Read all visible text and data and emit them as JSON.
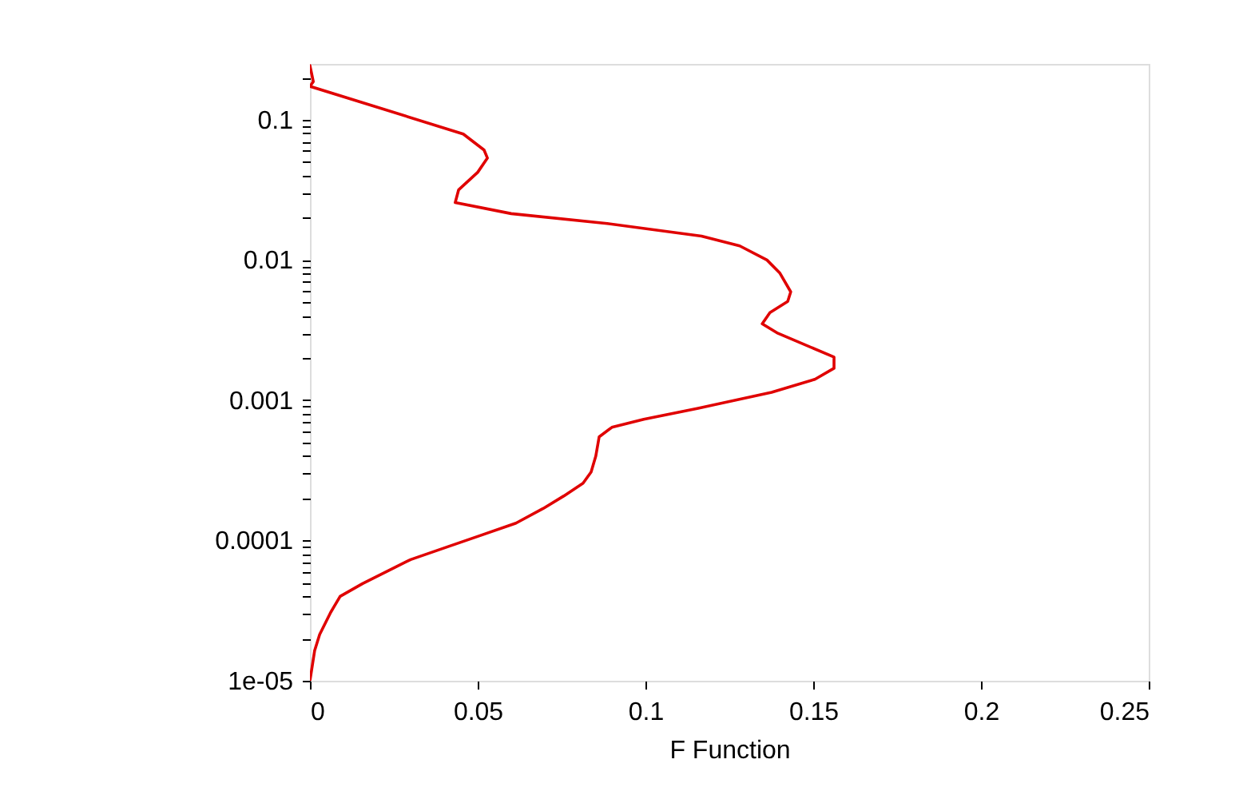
{
  "chart_data": {
    "type": "line",
    "xlabel": "F Function",
    "series": [
      {
        "color": "#e00000",
        "x": [
          0,
          0.001,
          0,
          0.0457,
          0.0519,
          0.0529,
          0.05,
          0.0443,
          0.0433,
          0.06,
          0.0886,
          0.1167,
          0.1281,
          0.1362,
          0.14,
          0.1433,
          0.1424,
          0.1371,
          0.1348,
          0.1395,
          0.1562,
          0.1562,
          0.1505,
          0.1376,
          0.1157,
          0.0995,
          0.09,
          0.0862,
          0.0852,
          0.0838,
          0.0814,
          0.0757,
          0.0695,
          0.0614,
          0.0505,
          0.041,
          0.03,
          0.0252,
          0.0157,
          0.009,
          0.0062,
          0.0029,
          0.0014,
          0
        ],
        "values": [
          0.243,
          0.187,
          0.173,
          0.0791,
          0.0608,
          0.0533,
          0.0422,
          0.0316,
          0.0257,
          0.0214,
          0.0182,
          0.0148,
          0.0126,
          0.01,
          0.0081,
          0.00593,
          0.00507,
          0.00422,
          0.00351,
          0.003,
          0.00203,
          0.00169,
          0.00141,
          0.00114,
          0.000877,
          0.000731,
          0.000641,
          0.000548,
          0.0004,
          0.000308,
          0.000256,
          0.000208,
          0.000169,
          0.000133,
          0.000108,
          9.01e-05,
          7.31e-05,
          6.41e-05,
          4.93e-05,
          4e-05,
          3.08e-05,
          2.14e-05,
          1.64e-05,
          1e-05
        ]
      }
    ],
    "log": "y",
    "grid": false,
    "legend": false,
    "marker": "none",
    "line_style": "solid",
    "xlim": [
      0,
      0.25
    ],
    "xticks": [
      0,
      0.05,
      0.1,
      0.15,
      0.2,
      0.25
    ],
    "ylim": [
      1e-05,
      0.25
    ],
    "yticks": [
      {
        "value": 1e-05,
        "label": "1e-05"
      },
      {
        "value": 2e-05,
        "label": null
      },
      {
        "value": 3e-05,
        "label": null
      },
      {
        "value": 4e-05,
        "label": null
      },
      {
        "value": 5e-05,
        "label": null
      },
      {
        "value": 6e-05,
        "label": null
      },
      {
        "value": 7e-05,
        "label": null
      },
      {
        "value": 8e-05,
        "label": null
      },
      {
        "value": 9e-05,
        "label": null
      },
      0.0001,
      {
        "value": 0.0002,
        "label": null
      },
      {
        "value": 0.0003,
        "label": null
      },
      {
        "value": 0.0004,
        "label": null
      },
      {
        "value": 0.0005,
        "label": null
      },
      {
        "value": 0.0006,
        "label": null
      },
      {
        "value": 0.0007,
        "label": null
      },
      {
        "value": 0.0008,
        "label": null
      },
      {
        "value": 0.0009,
        "label": null
      },
      0.001,
      {
        "value": 0.002,
        "label": null
      },
      {
        "value": 0.003,
        "label": null
      },
      {
        "value": 0.004,
        "label": null
      },
      {
        "value": 0.005,
        "label": null
      },
      {
        "value": 0.006,
        "label": null
      },
      {
        "value": 0.007,
        "label": null
      },
      {
        "value": 0.008,
        "label": null
      },
      {
        "value": 0.009,
        "label": null
      },
      0.01,
      {
        "value": 0.02,
        "label": null
      },
      {
        "value": 0.03,
        "label": null
      },
      {
        "value": 0.04,
        "label": null
      },
      {
        "value": 0.05,
        "label": null
      },
      {
        "value": 0.06,
        "label": null
      },
      {
        "value": 0.07,
        "label": null
      },
      {
        "value": 0.08,
        "label": null
      },
      {
        "value": 0.09,
        "label": null
      },
      0.1,
      {
        "value": 0.2,
        "label": null
      }
    ]
  }
}
